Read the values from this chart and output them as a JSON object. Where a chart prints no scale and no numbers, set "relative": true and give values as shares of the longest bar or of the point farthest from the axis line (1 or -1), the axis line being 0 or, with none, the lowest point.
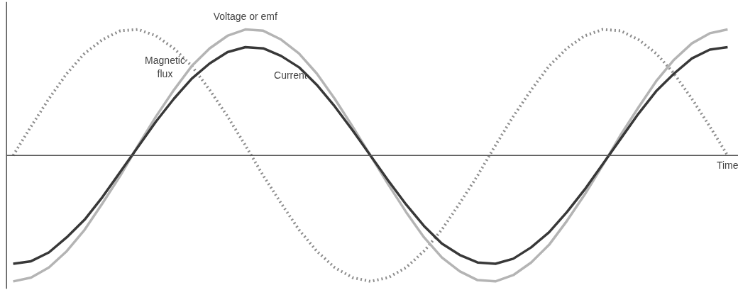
{
  "chart_data": {
    "type": "line",
    "relative": true,
    "xlabel": "Time",
    "grid": false,
    "categories": [
      null,
      null,
      null,
      null,
      null,
      null,
      null,
      null,
      null,
      null,
      null,
      null,
      null,
      null,
      null,
      null,
      null,
      null,
      null,
      null,
      null,
      null,
      null,
      null,
      null,
      null,
      null,
      null,
      null,
      null,
      null,
      null,
      null,
      null,
      null,
      null,
      null,
      null,
      null,
      null,
      null
    ],
    "series": [
      {
        "name": "Magnetic\nflux",
        "color": "#8c8c8c",
        "line_style": "dotted",
        "values": [
          0,
          0.23,
          0.45,
          0.65,
          0.81,
          0.92,
          0.99,
          1.0,
          0.95,
          0.85,
          0.71,
          0.52,
          0.31,
          0.08,
          -0.16,
          -0.38,
          -0.59,
          -0.76,
          -0.89,
          -0.97,
          -1,
          -0.97,
          -0.89,
          -0.76,
          -0.59,
          -0.38,
          -0.16,
          0.08,
          0.31,
          0.52,
          0.71,
          0.85,
          0.95,
          1.0,
          0.99,
          0.92,
          0.81,
          0.65,
          0.45,
          0.23,
          0
        ]
      },
      {
        "name": "Voltage or emf",
        "color": "#b4b4b4",
        "line_style": "solid",
        "values": [
          -1,
          -0.97,
          -0.89,
          -0.76,
          -0.59,
          -0.38,
          -0.16,
          0.08,
          0.31,
          0.52,
          0.71,
          0.85,
          0.95,
          1.0,
          0.99,
          0.92,
          0.81,
          0.65,
          0.45,
          0.23,
          0,
          -0.23,
          -0.45,
          -0.65,
          -0.81,
          -0.92,
          -0.99,
          -1.0,
          -0.95,
          -0.85,
          -0.71,
          -0.52,
          -0.31,
          -0.08,
          0.16,
          0.38,
          0.59,
          0.76,
          0.89,
          0.97,
          1
        ]
      },
      {
        "name": "Current",
        "color": "#383838",
        "line_style": "solid",
        "values": [
          -0.86,
          -0.84,
          -0.77,
          -0.65,
          -0.51,
          -0.33,
          -0.13,
          0.07,
          0.27,
          0.45,
          0.61,
          0.73,
          0.82,
          0.86,
          0.85,
          0.79,
          0.7,
          0.56,
          0.39,
          0.2,
          0,
          -0.2,
          -0.39,
          -0.56,
          -0.7,
          -0.79,
          -0.85,
          -0.86,
          -0.82,
          -0.73,
          -0.61,
          -0.45,
          -0.27,
          -0.07,
          0.13,
          0.33,
          0.51,
          0.65,
          0.77,
          0.84,
          0.86
        ]
      }
    ]
  }
}
